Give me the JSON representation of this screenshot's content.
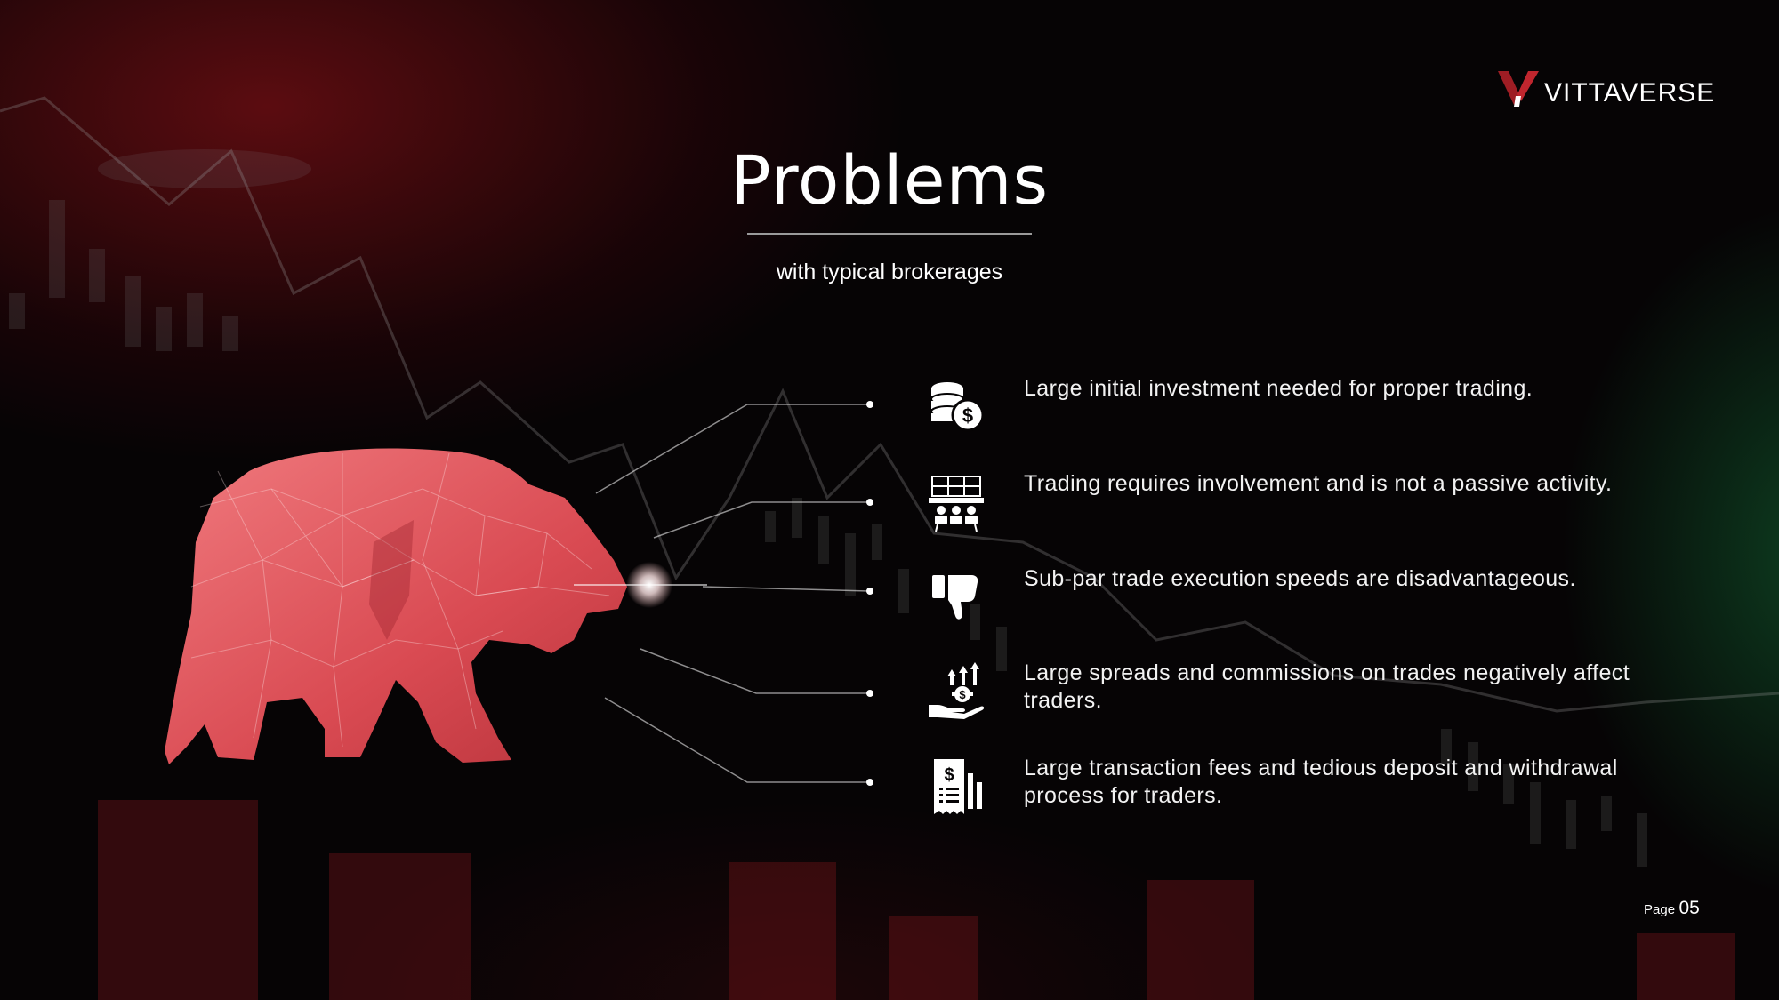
{
  "brand": {
    "name": "VITTAVERSE"
  },
  "slide": {
    "title": "Problems",
    "subtitle": "with typical brokerages"
  },
  "problems": [
    {
      "icon": "coins-dollar-icon",
      "text": "Large initial investment needed for proper trading."
    },
    {
      "icon": "trading-desk-icon",
      "text": "Trading requires involvement and is not a passive activity."
    },
    {
      "icon": "thumbs-down-icon",
      "text": "Sub-par trade execution speeds are disadvantageous."
    },
    {
      "icon": "hand-money-arrows-icon",
      "text": "Large spreads and commissions on trades negatively affect traders."
    },
    {
      "icon": "receipt-dollar-icon",
      "text": "Large transaction fees and tedious deposit and withdrawal process for traders."
    }
  ],
  "footer": {
    "page_label": "Page",
    "page_number": "05"
  },
  "colors": {
    "accent": "#c0262e",
    "bear": "#e0575d",
    "text": "#ffffff"
  }
}
